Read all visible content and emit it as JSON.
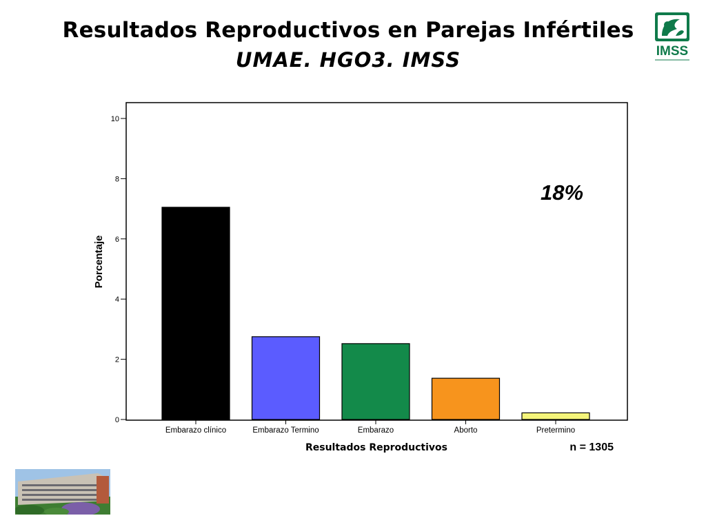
{
  "slide": {
    "title": "Resultados Reproductivos en Parejas Infértiles",
    "subtitle": "UMAE. HGO3. IMSS",
    "logo_text": "IMSS",
    "logo_color": "#0f7a4a"
  },
  "chart_data": {
    "type": "bar",
    "xlabel": "Resultados Reproductivos",
    "ylabel": "Porcentaje",
    "categories": [
      "Embarazo clínico",
      "Embarazo Termino",
      "Embarazo",
      "Aborto",
      "Pretermino"
    ],
    "values": [
      7.05,
      2.75,
      2.52,
      1.37,
      0.22
    ],
    "colors": [
      "#000000",
      "#5b5cff",
      "#138a4a",
      "#f7941d",
      "#f4f47a"
    ],
    "ylim": [
      0,
      10
    ],
    "yticks": [
      "0",
      "2",
      "4",
      "6",
      "8",
      "10"
    ],
    "annotation": "18%",
    "n_label": "n = 1305",
    "grid": false
  }
}
